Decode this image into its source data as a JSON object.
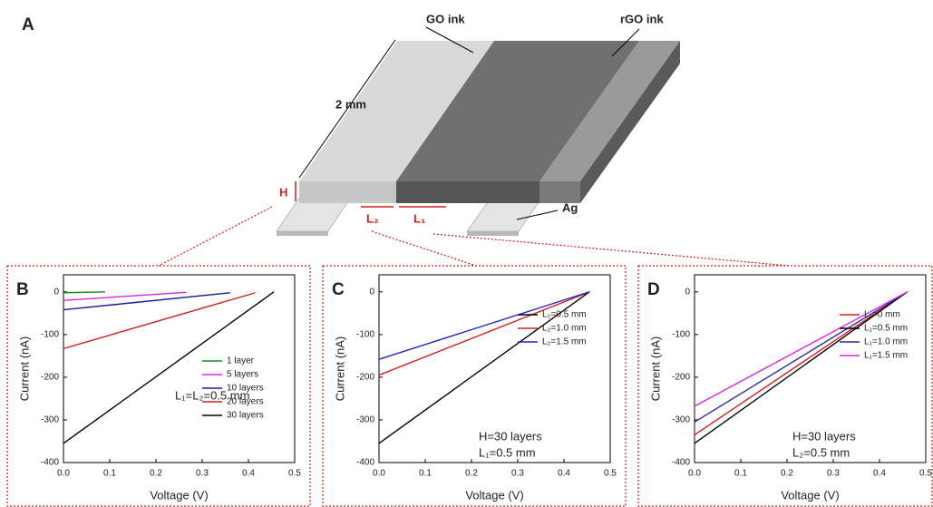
{
  "diagram": {
    "panel_label": "A",
    "go_ink": "GO ink",
    "rgo_ink": "rGO ink",
    "length": "2 mm",
    "height": "H",
    "l2": "L₂",
    "l1": "L₁",
    "ag": "Ag"
  },
  "chart_data": [
    {
      "type": "line",
      "panel_label": "B",
      "x_label": "Voltage (V)",
      "y_label": "Current (nA)",
      "xlim": [
        0,
        0.5
      ],
      "ylim": [
        -400,
        40
      ],
      "xticks": [
        {
          "value": 0,
          "label": "0.0"
        },
        0.1,
        0.2,
        0.3,
        0.4,
        0.5
      ],
      "yticks": [
        0,
        -100,
        -200,
        -300,
        -400
      ],
      "annotations": [
        "L₁=L₂=0.5 mm"
      ],
      "series": [
        {
          "name": "1 layer",
          "color": "#1a8a1a",
          "x": [
            0,
            0.09
          ],
          "values": [
            -2,
            0
          ]
        },
        {
          "name": "5 layers",
          "color": "#e020e0",
          "x": [
            0,
            0.265
          ],
          "values": [
            -20,
            -1
          ]
        },
        {
          "name": "10 layers",
          "color": "#1a1a9a",
          "x": [
            0,
            0.36
          ],
          "values": [
            -42,
            -2
          ]
        },
        {
          "name": "20 layers",
          "color": "#d42020",
          "x": [
            0,
            0.415
          ],
          "values": [
            -133,
            -2
          ]
        },
        {
          "name": "30 layers",
          "color": "#000000",
          "x": [
            0,
            0.455
          ],
          "values": [
            -355,
            0
          ]
        }
      ]
    },
    {
      "type": "line",
      "panel_label": "C",
      "x_label": "Voltage (V)",
      "y_label": "Current (nA)",
      "xlim": [
        0,
        0.5
      ],
      "ylim": [
        -400,
        40
      ],
      "xticks": [
        {
          "value": 0,
          "label": "0.0"
        },
        0.1,
        0.2,
        0.3,
        0.4,
        0.5
      ],
      "yticks": [
        0,
        -100,
        -200,
        -300,
        -400
      ],
      "annotations": [
        "H=30 layers",
        "L₁=0.5 mm"
      ],
      "series": [
        {
          "name": "L₂=0.5 mm",
          "color": "#000000",
          "x": [
            0,
            0.455
          ],
          "values": [
            -355,
            0
          ]
        },
        {
          "name": "L₂=1.0 mm",
          "color": "#d42020",
          "x": [
            0,
            0.455
          ],
          "values": [
            -195,
            0
          ]
        },
        {
          "name": "L₂=1.5 mm",
          "color": "#2020c8",
          "x": [
            0,
            0.455
          ],
          "values": [
            -158,
            0
          ]
        }
      ]
    },
    {
      "type": "line",
      "panel_label": "D",
      "x_label": "Voltage (V)",
      "y_label": "Current (nA)",
      "xlim": [
        0,
        0.5
      ],
      "ylim": [
        -400,
        40
      ],
      "xticks": [
        {
          "value": 0,
          "label": "0.0"
        },
        0.1,
        0.2,
        0.3,
        0.4,
        0.5
      ],
      "yticks": [
        0,
        -100,
        -200,
        -300,
        -400
      ],
      "annotations": [
        "H=30 layers",
        "L₂=0.5 mm"
      ],
      "series": [
        {
          "name": "L₁=0 mm",
          "color": "#d42020",
          "x": [
            0,
            0.46
          ],
          "values": [
            -335,
            0
          ]
        },
        {
          "name": "L₁=0.5 mm",
          "color": "#000000",
          "x": [
            0,
            0.46
          ],
          "values": [
            -355,
            0
          ]
        },
        {
          "name": "L₁=1.0 mm",
          "color": "#2a2aa0",
          "x": [
            0,
            0.46
          ],
          "values": [
            -305,
            0
          ]
        },
        {
          "name": "L₁=1.5 mm",
          "color": "#e020e0",
          "x": [
            0,
            0.46
          ],
          "values": [
            -268,
            0
          ]
        }
      ]
    }
  ]
}
